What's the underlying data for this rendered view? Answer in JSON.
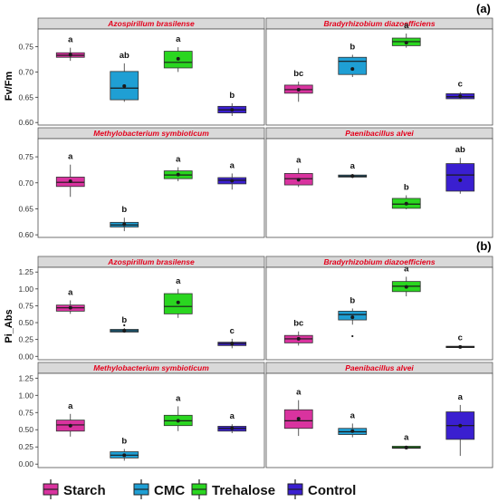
{
  "chart_data": [
    {
      "type": "box",
      "panel_label": "(a)",
      "ylabel": "Fv/Fm",
      "ylim": [
        0.595,
        0.785
      ],
      "yticks": [
        0.6,
        0.65,
        0.7,
        0.75
      ],
      "ytick_labels": [
        "0.60",
        "0.65",
        "0.70",
        "0.75"
      ],
      "series": [
        "Starch",
        "CMC",
        "Trehalose",
        "Control"
      ],
      "facets": [
        {
          "title": "Azospirillum brasilense",
          "boxes": [
            {
              "q1": 0.729,
              "median": 0.733,
              "q3": 0.738,
              "wlo": 0.722,
              "whi": 0.748,
              "mean": 0.734,
              "letter": "a"
            },
            {
              "q1": 0.645,
              "median": 0.668,
              "q3": 0.701,
              "wlo": 0.641,
              "whi": 0.717,
              "mean": 0.672,
              "letter": "ab"
            },
            {
              "q1": 0.708,
              "median": 0.719,
              "q3": 0.741,
              "wlo": 0.7,
              "whi": 0.749,
              "mean": 0.726,
              "letter": "a"
            },
            {
              "q1": 0.619,
              "median": 0.625,
              "q3": 0.632,
              "wlo": 0.613,
              "whi": 0.638,
              "mean": 0.625,
              "letter": "b"
            }
          ]
        },
        {
          "title": "Bradyrhizobium diazoefficiens",
          "boxes": [
            {
              "q1": 0.658,
              "median": 0.665,
              "q3": 0.674,
              "wlo": 0.641,
              "whi": 0.681,
              "mean": 0.665,
              "letter": "bc"
            },
            {
              "q1": 0.695,
              "median": 0.721,
              "q3": 0.729,
              "wlo": 0.69,
              "whi": 0.734,
              "mean": 0.706,
              "letter": "b"
            },
            {
              "q1": 0.752,
              "median": 0.76,
              "q3": 0.767,
              "wlo": 0.748,
              "whi": 0.776,
              "mean": 0.758,
              "letter": "a"
            },
            {
              "q1": 0.647,
              "median": 0.651,
              "q3": 0.657,
              "wlo": 0.646,
              "whi": 0.66,
              "mean": 0.652,
              "letter": "c"
            }
          ]
        },
        {
          "title": "Methylobacterium symbioticum",
          "boxes": [
            {
              "q1": 0.693,
              "median": 0.701,
              "q3": 0.711,
              "wlo": 0.673,
              "whi": 0.735,
              "mean": 0.703,
              "letter": "a"
            },
            {
              "q1": 0.615,
              "median": 0.619,
              "q3": 0.624,
              "wlo": 0.607,
              "whi": 0.633,
              "mean": 0.62,
              "letter": "b"
            },
            {
              "q1": 0.708,
              "median": 0.715,
              "q3": 0.723,
              "wlo": 0.703,
              "whi": 0.73,
              "mean": 0.716,
              "letter": "a"
            },
            {
              "q1": 0.698,
              "median": 0.705,
              "q3": 0.71,
              "wlo": 0.687,
              "whi": 0.718,
              "mean": 0.704,
              "letter": "a"
            }
          ]
        },
        {
          "title": "Paenibacillus alvei",
          "boxes": [
            {
              "q1": 0.696,
              "median": 0.708,
              "q3": 0.718,
              "wlo": 0.692,
              "whi": 0.728,
              "mean": 0.706,
              "letter": "a"
            },
            {
              "q1": 0.711,
              "median": 0.713,
              "q3": 0.715,
              "wlo": 0.709,
              "whi": 0.717,
              "mean": 0.713,
              "letter": "a"
            },
            {
              "q1": 0.651,
              "median": 0.659,
              "q3": 0.67,
              "wlo": 0.649,
              "whi": 0.676,
              "mean": 0.66,
              "letter": "b"
            },
            {
              "q1": 0.684,
              "median": 0.715,
              "q3": 0.737,
              "wlo": 0.679,
              "whi": 0.748,
              "mean": 0.705,
              "letter": "ab"
            }
          ]
        }
      ]
    },
    {
      "type": "box",
      "panel_label": "(b)",
      "ylabel": "Pi_Abs",
      "ylim": [
        -0.05,
        1.32
      ],
      "yticks": [
        0.0,
        0.25,
        0.5,
        0.75,
        1.0,
        1.25
      ],
      "ytick_labels": [
        "0.00",
        "0.25",
        "0.50",
        "0.75",
        "1.00",
        "1.25"
      ],
      "series": [
        "Starch",
        "CMC",
        "Trehalose",
        "Control"
      ],
      "facets": [
        {
          "title": "Azospirillum brasilense",
          "boxes": [
            {
              "q1": 0.67,
              "median": 0.72,
              "q3": 0.76,
              "wlo": 0.63,
              "whi": 0.83,
              "mean": 0.72,
              "letter": "a"
            },
            {
              "q1": 0.36,
              "median": 0.38,
              "q3": 0.4,
              "wlo": 0.35,
              "whi": 0.42,
              "mean": 0.38,
              "letter": "b",
              "outliers": [
                0.46
              ]
            },
            {
              "q1": 0.63,
              "median": 0.74,
              "q3": 0.93,
              "wlo": 0.57,
              "whi": 1.0,
              "mean": 0.8,
              "letter": "a"
            },
            {
              "q1": 0.16,
              "median": 0.19,
              "q3": 0.21,
              "wlo": 0.12,
              "whi": 0.26,
              "mean": 0.19,
              "letter": "c"
            }
          ]
        },
        {
          "title": "Bradyrhizobium diazoefficiens",
          "boxes": [
            {
              "q1": 0.2,
              "median": 0.26,
              "q3": 0.31,
              "wlo": 0.16,
              "whi": 0.37,
              "mean": 0.26,
              "letter": "bc"
            },
            {
              "q1": 0.54,
              "median": 0.62,
              "q3": 0.67,
              "wlo": 0.47,
              "whi": 0.71,
              "mean": 0.58,
              "letter": "b",
              "outliers": [
                0.3
              ]
            },
            {
              "q1": 0.96,
              "median": 1.04,
              "q3": 1.11,
              "wlo": 0.89,
              "whi": 1.18,
              "mean": 1.03,
              "letter": "a"
            },
            {
              "q1": 0.13,
              "median": 0.14,
              "q3": 0.15,
              "wlo": 0.12,
              "whi": 0.16,
              "mean": 0.14,
              "letter": "c"
            }
          ]
        },
        {
          "title": "Methylobacterium symbioticum",
          "boxes": [
            {
              "q1": 0.48,
              "median": 0.57,
              "q3": 0.64,
              "wlo": 0.4,
              "whi": 0.73,
              "mean": 0.56,
              "letter": "a"
            },
            {
              "q1": 0.09,
              "median": 0.13,
              "q3": 0.18,
              "wlo": 0.05,
              "whi": 0.22,
              "mean": 0.13,
              "letter": "b"
            },
            {
              "q1": 0.56,
              "median": 0.63,
              "q3": 0.71,
              "wlo": 0.48,
              "whi": 0.84,
              "mean": 0.63,
              "letter": "a"
            },
            {
              "q1": 0.48,
              "median": 0.52,
              "q3": 0.55,
              "wlo": 0.45,
              "whi": 0.58,
              "mean": 0.52,
              "letter": "a"
            }
          ]
        },
        {
          "title": "Paenibacillus alvei",
          "boxes": [
            {
              "q1": 0.52,
              "median": 0.63,
              "q3": 0.79,
              "wlo": 0.41,
              "whi": 0.93,
              "mean": 0.66,
              "letter": "a"
            },
            {
              "q1": 0.43,
              "median": 0.47,
              "q3": 0.52,
              "wlo": 0.39,
              "whi": 0.59,
              "mean": 0.48,
              "letter": "a"
            },
            {
              "q1": 0.23,
              "median": 0.24,
              "q3": 0.26,
              "wlo": 0.22,
              "whi": 0.27,
              "mean": 0.24,
              "letter": "a"
            },
            {
              "q1": 0.36,
              "median": 0.56,
              "q3": 0.76,
              "wlo": 0.12,
              "whi": 0.86,
              "mean": 0.56,
              "letter": "a"
            }
          ]
        }
      ]
    }
  ],
  "legend": {
    "items": [
      {
        "label": "Starch",
        "color": "#d9339f"
      },
      {
        "label": "CMC",
        "color": "#1f9fd4"
      },
      {
        "label": "Trehalose",
        "color": "#2ad620"
      },
      {
        "label": "Control",
        "color": "#3a1fd0"
      }
    ]
  }
}
